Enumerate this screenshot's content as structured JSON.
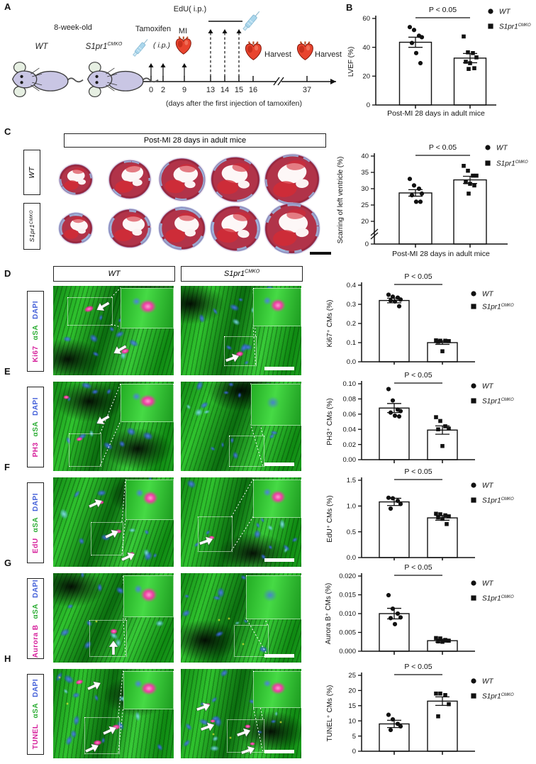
{
  "legend": {
    "wt": "WT",
    "ko": "S1pr1",
    "ko_sup": "CMKO"
  },
  "panel_a": {
    "letter": "A",
    "age": "8-week-old",
    "wt": "WT",
    "ko": "S1pr1",
    "ko_sup": "CMKO",
    "tamoxifen": "Tamoxifen",
    "tamoxifen_route": "( i.p.)",
    "mi": "MI",
    "edu": "EdU( i.p.)",
    "harvest_1": "Harvest",
    "harvest_2": "Harvest",
    "days": [
      "0",
      "2",
      "9",
      "13",
      "14",
      "15",
      "16",
      "37"
    ],
    "axis_caption": "(days after the first injection of tamoxifen)"
  },
  "panel_b": {
    "letter": "B"
  },
  "panel_c": {
    "letter": "C",
    "header": "Post-MI 28 days in adult mice",
    "row_wt": "WT",
    "row_ko": "S1pr1",
    "row_ko_sup": "CMKO"
  },
  "rows": [
    {
      "letter": "D",
      "marker": "Ki67",
      "stain_green": "αSA",
      "stain_blue": "DAPI",
      "header_wt": "WT",
      "header_ko": "S1pr1",
      "header_ko_sup": "CMKO"
    },
    {
      "letter": "E",
      "marker": "PH3",
      "stain_green": "αSA",
      "stain_blue": "DAPI"
    },
    {
      "letter": "F",
      "marker": "EdU",
      "stain_green": "αSA",
      "stain_blue": "DAPI"
    },
    {
      "letter": "G",
      "marker": "Aurora B",
      "stain_green": "αSA",
      "stain_blue": "DAPI"
    },
    {
      "letter": "H",
      "marker": "TUNEL",
      "stain_green": "αSA",
      "stain_blue": "DAPI"
    }
  ],
  "colors": {
    "marker_text": "#d6219c",
    "green_text": "#2fae37",
    "blue_text": "#4662d9",
    "mouse_body": "#c9c6e4",
    "mouse_ear": "#e6efe2",
    "syringe": "#aad6ec",
    "heart_red": "#e8442e",
    "histo_red": "#b13349",
    "scar_blue": "#9db6de"
  },
  "icons": [
    "mouse-icon",
    "syringe-icon",
    "heart-icon",
    "arrow-icon"
  ],
  "chart_data": [
    {
      "id": "B",
      "type": "bar",
      "ylabel": "LVEF (%)",
      "yticks": [
        "0",
        "20",
        "40",
        "60"
      ],
      "ylim": [
        0,
        60
      ],
      "categories": [
        "WT",
        "S1pr1CMKO"
      ],
      "means": [
        43.5,
        32.5
      ],
      "errors": [
        3.5,
        3.2
      ],
      "points_wt": [
        54,
        52,
        48,
        47,
        43,
        36,
        29
      ],
      "points_ko": [
        47.5,
        36.5,
        36,
        33,
        30,
        29,
        25.5,
        25
      ],
      "p_label": "P < 0.05",
      "xlabel": "Post-MI 28 days in adult mice",
      "legend_position": "right"
    },
    {
      "id": "C",
      "type": "bar",
      "ylabel": "Scarring of left ventricle (%)",
      "yticks": [
        "0",
        "20",
        "25",
        "30",
        "35",
        "40"
      ],
      "ylim": [
        20,
        40
      ],
      "axis_break": true,
      "categories": [
        "WT",
        "S1pr1CMKO"
      ],
      "means": [
        28.7,
        32.7
      ],
      "errors": [
        1.0,
        1.1
      ],
      "points_wt": [
        33,
        31,
        30,
        28.5,
        28,
        26,
        26
      ],
      "points_ko": [
        37,
        35.5,
        34,
        34,
        32,
        31.5,
        31,
        28.5
      ],
      "p_label": "P < 0.05",
      "xlabel": "Post-MI 28 days in adult mice",
      "legend_position": "right"
    },
    {
      "id": "D",
      "type": "bar",
      "ylabel": "Ki67⁺ CMs (%)",
      "yticks": [
        "0.0",
        "0.1",
        "0.2",
        "0.3",
        "0.4"
      ],
      "ylim": [
        0,
        0.4
      ],
      "categories": [
        "WT",
        "S1pr1CMKO"
      ],
      "means": [
        0.32,
        0.1
      ],
      "errors": [
        0.012,
        0.009
      ],
      "points_wt": [
        0.35,
        0.34,
        0.335,
        0.325,
        0.32,
        0.315,
        0.29
      ],
      "points_ko": [
        0.112,
        0.11,
        0.11,
        0.108,
        0.105,
        0.055
      ],
      "p_label": "P < 0.05",
      "xlabel": "",
      "legend_position": "right"
    },
    {
      "id": "E",
      "type": "bar",
      "ylabel": "PH3⁺ CMs (%)",
      "yticks": [
        "0.00",
        "0.02",
        "0.04",
        "0.06",
        "0.08",
        "0.10"
      ],
      "ylim": [
        0,
        0.1
      ],
      "categories": [
        "WT",
        "S1pr1CMKO"
      ],
      "means": [
        0.068,
        0.039
      ],
      "errors": [
        0.006,
        0.0055
      ],
      "points_wt": [
        0.093,
        0.078,
        0.066,
        0.064,
        0.062,
        0.058,
        0.057
      ],
      "points_ko": [
        0.056,
        0.051,
        0.044,
        0.041,
        0.04,
        0.018
      ],
      "p_label": "P < 0.05",
      "xlabel": "",
      "legend_position": "right"
    },
    {
      "id": "F",
      "type": "bar",
      "ylabel": "EdU⁺ CMs (%)",
      "yticks": [
        "0.0",
        "0.5",
        "1.0",
        "1.5"
      ],
      "ylim": [
        0,
        1.5
      ],
      "categories": [
        "WT",
        "S1pr1CMKO"
      ],
      "means": [
        1.08,
        0.77
      ],
      "errors": [
        0.07,
        0.045
      ],
      "points_wt": [
        1.16,
        1.15,
        1.1,
        1.04,
        0.95
      ],
      "points_ko": [
        0.85,
        0.84,
        0.82,
        0.8,
        0.78,
        0.75,
        0.65
      ],
      "p_label": "P < 0.05",
      "xlabel": "",
      "legend_position": "right"
    },
    {
      "id": "G",
      "type": "bar",
      "ylabel": "Aurora B⁺ CMs (%)",
      "yticks": [
        "0.000",
        "0.005",
        "0.010",
        "0.015",
        "0.020"
      ],
      "ylim": [
        0,
        0.02
      ],
      "categories": [
        "WT",
        "S1pr1CMKO"
      ],
      "means": [
        0.01,
        0.0028
      ],
      "errors": [
        0.0014,
        0.0004
      ],
      "points_wt": [
        0.0149,
        0.0113,
        0.01,
        0.009,
        0.0088,
        0.0072
      ],
      "points_ko": [
        0.0035,
        0.0034,
        0.003,
        0.0028,
        0.0026,
        0.0025
      ],
      "p_label": "P < 0.05",
      "xlabel": "",
      "legend_position": "right"
    },
    {
      "id": "H",
      "type": "bar",
      "ylabel": "TUNEL⁺ CMs (%)",
      "yticks": [
        "0",
        "5",
        "10",
        "15",
        "20",
        "25"
      ],
      "ylim": [
        0,
        25
      ],
      "categories": [
        "WT",
        "S1pr1CMKO"
      ],
      "means": [
        9,
        16.5
      ],
      "errors": [
        1.2,
        1.4
      ],
      "points_wt": [
        12,
        10.5,
        9,
        8.2,
        7
      ],
      "points_ko": [
        19,
        19,
        18.5,
        15.5,
        11.5
      ],
      "p_label": "P < 0.05",
      "xlabel": "",
      "legend_position": "right"
    }
  ]
}
